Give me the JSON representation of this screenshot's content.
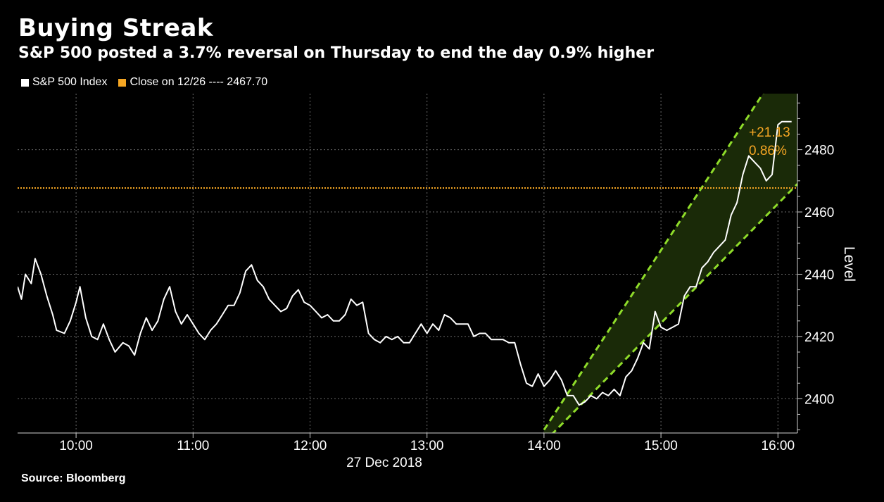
{
  "header": {
    "title": "Buying Streak",
    "subtitle": "S&P 500 posted a 3.7% reversal on Thursday to end the day 0.9% higher"
  },
  "legend": [
    {
      "label": "S&P 500 Index",
      "color": "#ffffff"
    },
    {
      "label": "Close on 12/26 ---- 2467.70",
      "color": "#f5a623"
    }
  ],
  "footer": {
    "source": "Source: Bloomberg"
  },
  "annotation": {
    "change": "+21.13",
    "percent": "0.86%"
  },
  "chart_data": {
    "type": "line",
    "date_label": "27 Dec 2018",
    "xlabel": "",
    "ylabel": "Level",
    "x_ticks": [
      "10:00",
      "11:00",
      "12:00",
      "13:00",
      "14:00",
      "15:00",
      "16:00"
    ],
    "y_ticks": [
      2400,
      2420,
      2440,
      2460,
      2480
    ],
    "x_range": [
      "09:30",
      "16:10"
    ],
    "ylim": [
      2389,
      2498
    ],
    "grid": true,
    "reference_line": {
      "label": "Close on 12/26",
      "value": 2467.7,
      "color": "#f5a623"
    },
    "channel": {
      "color": "#8fdc2a",
      "lower": [
        [
          "14:00",
          2386
        ],
        [
          "16:10",
          2469
        ]
      ],
      "upper": [
        [
          "14:00",
          2390
        ],
        [
          "16:10",
          2515
        ]
      ]
    },
    "series": [
      {
        "name": "S&P 500 Index",
        "color": "#ffffff",
        "points": [
          [
            "09:30",
            2436
          ],
          [
            "09:32",
            2432
          ],
          [
            "09:34",
            2440
          ],
          [
            "09:37",
            2437
          ],
          [
            "09:39",
            2445
          ],
          [
            "09:42",
            2440
          ],
          [
            "09:45",
            2433
          ],
          [
            "09:48",
            2427
          ],
          [
            "09:50",
            2422
          ],
          [
            "09:54",
            2421
          ],
          [
            "09:57",
            2425
          ],
          [
            "10:00",
            2431
          ],
          [
            "10:02",
            2436
          ],
          [
            "10:05",
            2426
          ],
          [
            "10:08",
            2420
          ],
          [
            "10:11",
            2419
          ],
          [
            "10:14",
            2424
          ],
          [
            "10:17",
            2419
          ],
          [
            "10:20",
            2415
          ],
          [
            "10:24",
            2418
          ],
          [
            "10:27",
            2417
          ],
          [
            "10:30",
            2414
          ],
          [
            "10:33",
            2421
          ],
          [
            "10:36",
            2426
          ],
          [
            "10:39",
            2422
          ],
          [
            "10:42",
            2425
          ],
          [
            "10:45",
            2432
          ],
          [
            "10:48",
            2436
          ],
          [
            "10:51",
            2428
          ],
          [
            "10:54",
            2424
          ],
          [
            "10:57",
            2427
          ],
          [
            "11:00",
            2424
          ],
          [
            "11:03",
            2421
          ],
          [
            "11:06",
            2419
          ],
          [
            "11:09",
            2422
          ],
          [
            "11:12",
            2424
          ],
          [
            "11:15",
            2427
          ],
          [
            "11:18",
            2430
          ],
          [
            "11:21",
            2430
          ],
          [
            "11:24",
            2434
          ],
          [
            "11:27",
            2441
          ],
          [
            "11:30",
            2443
          ],
          [
            "11:33",
            2438
          ],
          [
            "11:36",
            2436
          ],
          [
            "11:39",
            2432
          ],
          [
            "11:42",
            2430
          ],
          [
            "11:45",
            2428
          ],
          [
            "11:48",
            2429
          ],
          [
            "11:51",
            2433
          ],
          [
            "11:54",
            2435
          ],
          [
            "11:57",
            2431
          ],
          [
            "12:00",
            2430
          ],
          [
            "12:03",
            2428
          ],
          [
            "12:06",
            2426
          ],
          [
            "12:09",
            2427
          ],
          [
            "12:12",
            2425
          ],
          [
            "12:15",
            2425
          ],
          [
            "12:18",
            2427
          ],
          [
            "12:21",
            2432
          ],
          [
            "12:24",
            2430
          ],
          [
            "12:27",
            2431
          ],
          [
            "12:30",
            2421
          ],
          [
            "12:33",
            2419
          ],
          [
            "12:36",
            2418
          ],
          [
            "12:39",
            2420
          ],
          [
            "12:42",
            2419
          ],
          [
            "12:45",
            2420
          ],
          [
            "12:48",
            2418
          ],
          [
            "12:51",
            2418
          ],
          [
            "12:54",
            2421
          ],
          [
            "12:57",
            2424
          ],
          [
            "13:00",
            2421
          ],
          [
            "13:03",
            2424
          ],
          [
            "13:06",
            2422
          ],
          [
            "13:09",
            2427
          ],
          [
            "13:12",
            2426
          ],
          [
            "13:15",
            2424
          ],
          [
            "13:18",
            2424
          ],
          [
            "13:21",
            2424
          ],
          [
            "13:24",
            2420
          ],
          [
            "13:27",
            2421
          ],
          [
            "13:30",
            2421
          ],
          [
            "13:33",
            2419
          ],
          [
            "13:36",
            2419
          ],
          [
            "13:39",
            2419
          ],
          [
            "13:42",
            2418
          ],
          [
            "13:45",
            2418
          ],
          [
            "13:48",
            2411
          ],
          [
            "13:51",
            2405
          ],
          [
            "13:54",
            2404
          ],
          [
            "13:57",
            2408
          ],
          [
            "14:00",
            2404
          ],
          [
            "14:03",
            2406
          ],
          [
            "14:06",
            2409
          ],
          [
            "14:09",
            2406
          ],
          [
            "14:12",
            2401
          ],
          [
            "14:15",
            2401
          ],
          [
            "14:18",
            2398
          ],
          [
            "14:21",
            2399
          ],
          [
            "14:24",
            2401
          ],
          [
            "14:27",
            2400
          ],
          [
            "14:30",
            2402
          ],
          [
            "14:33",
            2401
          ],
          [
            "14:36",
            2403
          ],
          [
            "14:39",
            2401
          ],
          [
            "14:42",
            2407
          ],
          [
            "14:45",
            2409
          ],
          [
            "14:48",
            2413
          ],
          [
            "14:51",
            2418
          ],
          [
            "14:54",
            2416
          ],
          [
            "14:57",
            2428
          ],
          [
            "15:00",
            2423
          ],
          [
            "15:03",
            2422
          ],
          [
            "15:06",
            2423
          ],
          [
            "15:09",
            2424
          ],
          [
            "15:12",
            2433
          ],
          [
            "15:15",
            2436
          ],
          [
            "15:18",
            2436
          ],
          [
            "15:21",
            2442
          ],
          [
            "15:24",
            2444
          ],
          [
            "15:27",
            2447
          ],
          [
            "15:30",
            2449
          ],
          [
            "15:33",
            2451
          ],
          [
            "15:36",
            2459
          ],
          [
            "15:39",
            2463
          ],
          [
            "15:42",
            2472
          ],
          [
            "15:45",
            2478
          ],
          [
            "15:48",
            2476
          ],
          [
            "15:51",
            2474
          ],
          [
            "15:54",
            2470
          ],
          [
            "15:57",
            2472
          ],
          [
            "16:00",
            2488
          ],
          [
            "16:02",
            2489
          ],
          [
            "16:04",
            2489
          ],
          [
            "16:07",
            2489
          ]
        ]
      }
    ]
  }
}
